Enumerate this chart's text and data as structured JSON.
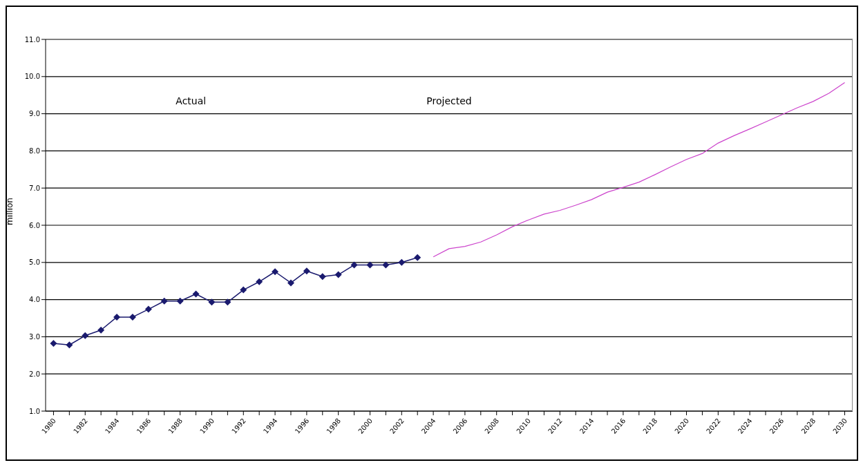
{
  "chart_data": {
    "type": "line",
    "ylabel": "million",
    "categories": [
      "1980",
      null,
      "1982",
      null,
      "1984",
      null,
      "1986",
      null,
      "1988",
      null,
      "1990",
      null,
      "1992",
      null,
      "1994",
      null,
      "1996",
      null,
      "1998",
      null,
      "2000",
      null,
      "2002",
      null,
      "2004",
      null,
      "2006",
      null,
      "2008",
      null,
      "2010",
      null,
      "2012",
      null,
      "2014",
      null,
      "2016",
      null,
      "2018",
      null,
      "2020",
      null,
      "2022",
      null,
      "2024",
      null,
      "2026",
      null,
      "2028",
      null,
      "2030"
    ],
    "series": [
      {
        "color": "#1a1a6e",
        "marker": "diamond",
        "values": [
          2.82,
          2.78,
          3.03,
          3.18,
          3.53,
          3.53,
          3.74,
          3.96,
          3.96,
          4.15,
          3.93,
          3.93,
          4.26,
          4.48,
          4.75,
          4.45,
          4.77,
          4.62,
          4.67,
          4.93,
          4.93,
          4.93,
          5.0,
          5.13,
          null,
          null,
          null,
          null,
          null,
          null,
          null,
          null,
          null,
          null,
          null,
          null,
          null,
          null,
          null,
          null,
          null,
          null,
          null,
          null,
          null,
          null,
          null,
          null,
          null,
          null,
          null
        ]
      },
      {
        "color": "#cc44cc",
        "marker": "none",
        "values": [
          null,
          null,
          null,
          null,
          null,
          null,
          null,
          null,
          null,
          null,
          null,
          null,
          null,
          null,
          null,
          null,
          null,
          null,
          null,
          null,
          null,
          null,
          null,
          null,
          5.15,
          5.37,
          5.43,
          5.55,
          5.74,
          5.96,
          6.14,
          6.3,
          6.4,
          6.54,
          6.69,
          6.89,
          7.02,
          7.16,
          7.36,
          7.57,
          7.77,
          7.93,
          8.21,
          8.41,
          8.59,
          8.78,
          8.97,
          9.16,
          9.33,
          9.55,
          9.84
        ]
      }
    ],
    "ylim": [
      1,
      11
    ],
    "yticks": [
      {
        "value": 1,
        "label": "1.0"
      },
      {
        "value": 2,
        "label": "2.0"
      },
      {
        "value": 3,
        "label": "3.0"
      },
      {
        "value": 4,
        "label": "4.0"
      },
      {
        "value": 5,
        "label": "5.0"
      },
      {
        "value": 6,
        "label": "6.0"
      },
      {
        "value": 7,
        "label": "7.0"
      },
      {
        "value": 8,
        "label": "8.0"
      },
      {
        "value": 9,
        "label": "9.0"
      },
      {
        "value": 10,
        "label": "10.0"
      },
      {
        "value": 11,
        "label": "11.0"
      }
    ],
    "grid": "y",
    "annotations": [
      "Actual",
      "Projected"
    ]
  }
}
